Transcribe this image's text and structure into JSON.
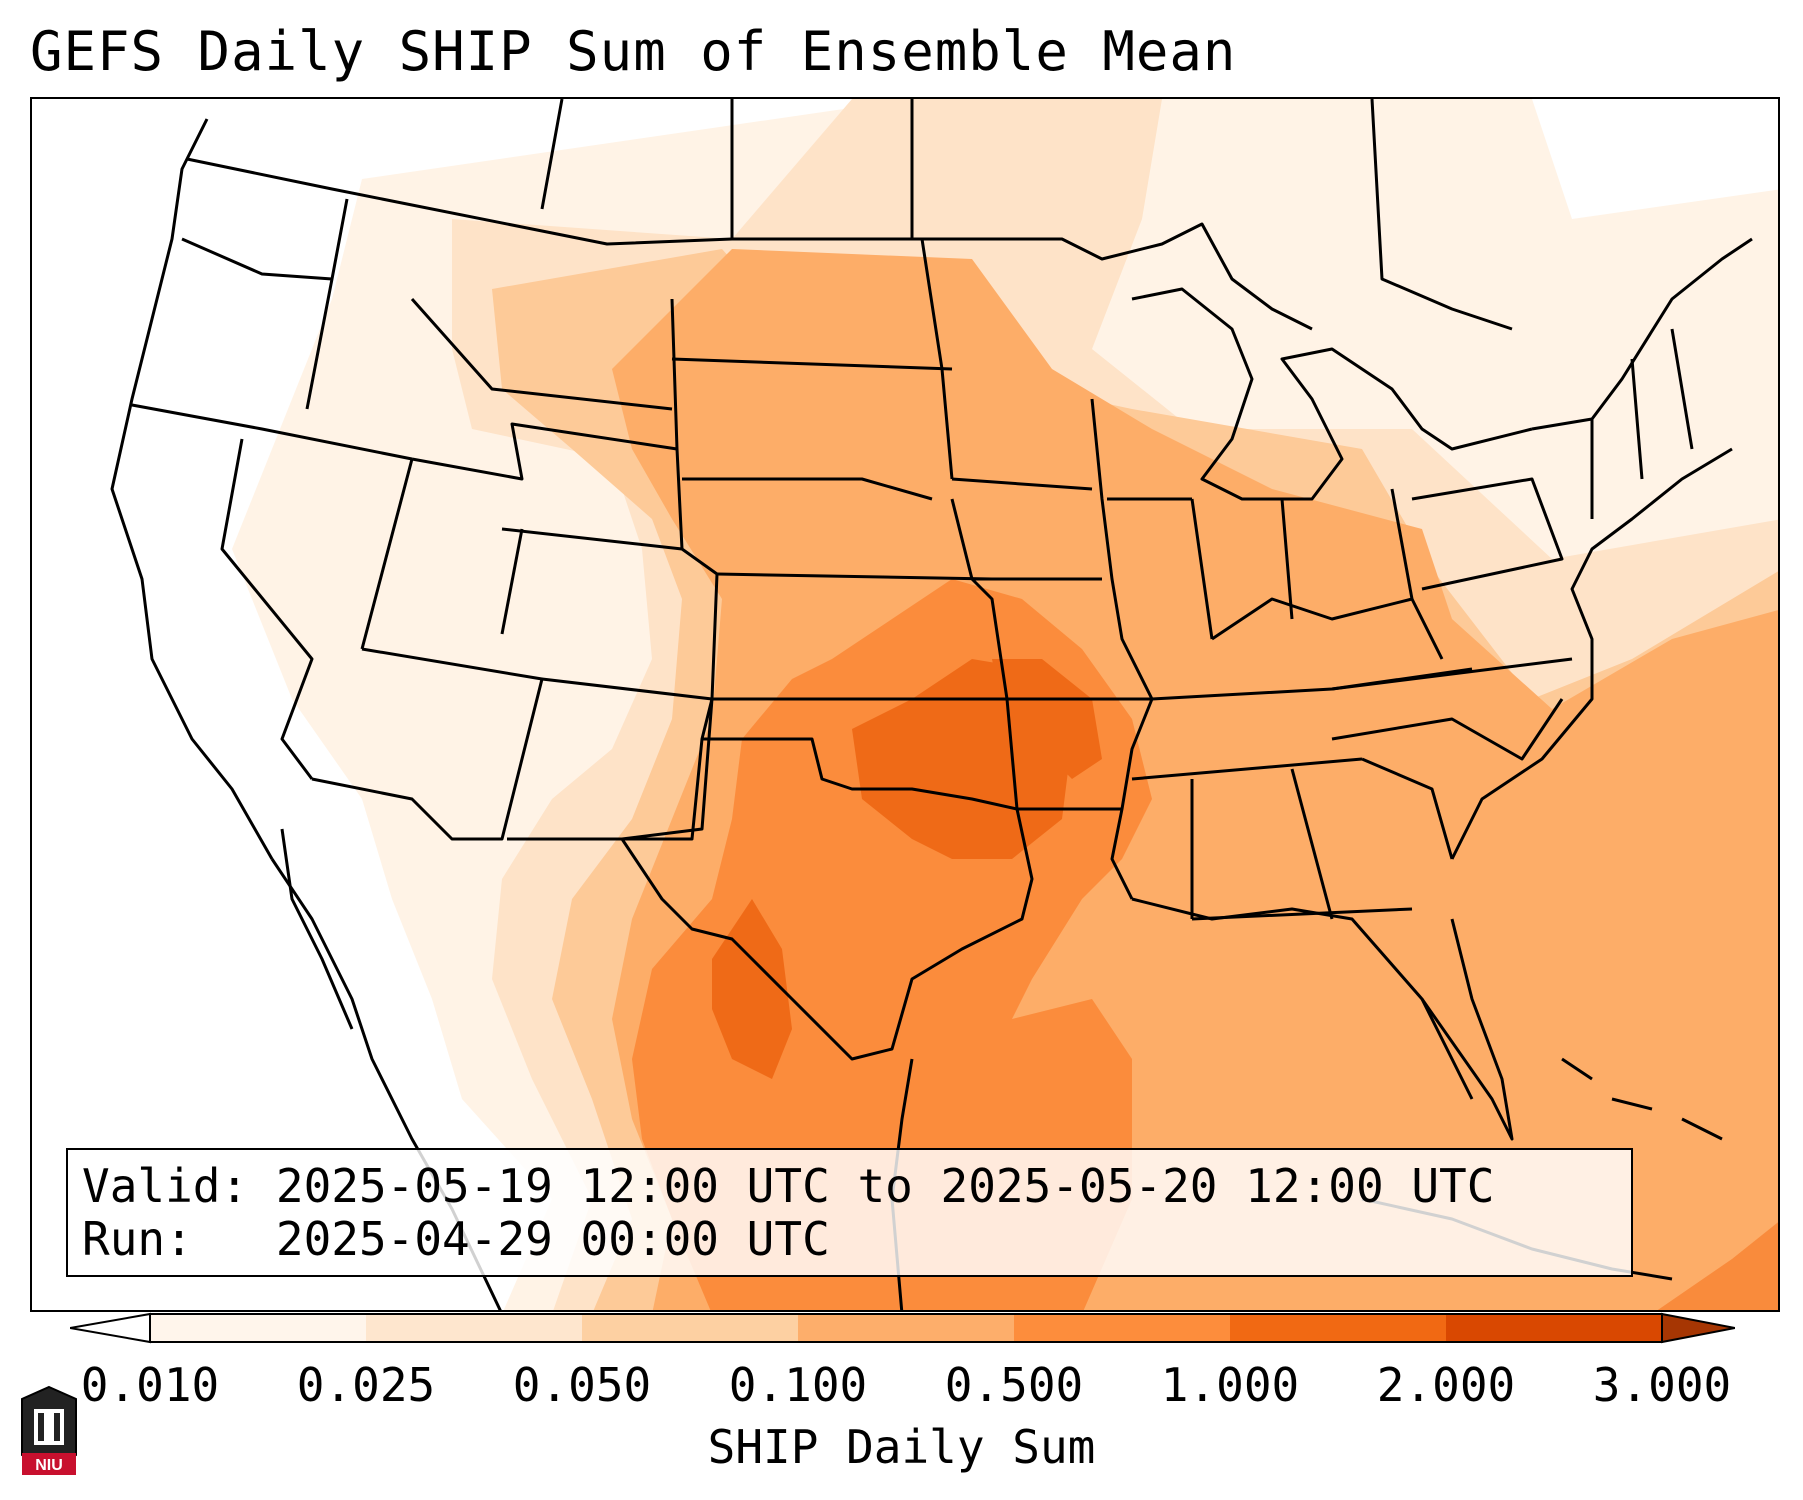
{
  "title": "GEFS Daily SHIP Sum of Ensemble Mean",
  "info": {
    "valid_label": "Valid:",
    "valid_value": "2025-05-19 12:00 UTC to 2025-05-20 12:00 UTC",
    "run_label": "Run:",
    "run_value": "2025-04-29 00:00 UTC"
  },
  "colorbar": {
    "label": "SHIP Daily Sum",
    "ticks": [
      "0.010",
      "0.025",
      "0.050",
      "0.100",
      "0.500",
      "1.000",
      "2.000",
      "3.000"
    ],
    "colors": [
      "#fff5eb",
      "#fee6ce",
      "#fdd0a2",
      "#fdae6b",
      "#fd8d3c",
      "#f16913",
      "#d94801",
      "#a63603"
    ],
    "extend": "both"
  },
  "logo_text": "NIU",
  "map": {
    "projection": "Lambert conformal (CONUS)",
    "field": "SHIP daily sum, ensemble mean",
    "max_region": "Kansas / Oklahoma / Texas",
    "icons": [
      "niu-logo-icon"
    ]
  }
}
